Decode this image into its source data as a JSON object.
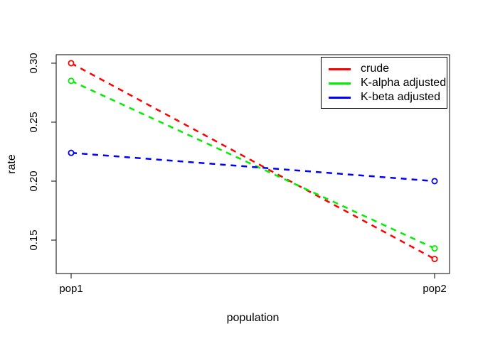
{
  "chart_data": {
    "type": "line",
    "title": "",
    "xlabel": "population",
    "ylabel": "rate",
    "x_categories": [
      "pop1",
      "pop2"
    ],
    "y_ticks": {
      "values": [
        0.15,
        0.2,
        0.25,
        0.3
      ],
      "labels": [
        "0.15",
        "0.20",
        "0.25",
        "0.30"
      ]
    },
    "ylim": [
      0.1217,
      0.3072
    ],
    "grid": false,
    "line_style": "dashed",
    "marker": "open-circle",
    "axis_color": "#000000",
    "background": "#ffffff",
    "legend": {
      "position": "top-right",
      "border": true
    },
    "series": [
      {
        "name": "crude",
        "color": "#ff0000",
        "values": [
          0.3,
          0.134
        ]
      },
      {
        "name": "K-alpha adjusted",
        "color": "#00ee00",
        "values": [
          0.285,
          0.143
        ]
      },
      {
        "name": "K-beta adjusted",
        "color": "#0000ff",
        "values": [
          0.224,
          0.2
        ]
      }
    ]
  }
}
